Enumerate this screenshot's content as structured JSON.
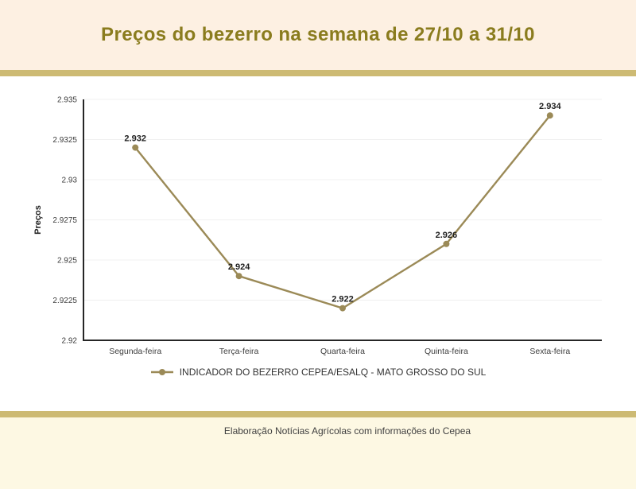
{
  "header": {
    "title": "Preços do bezerro na semana de 27/10 a 31/10"
  },
  "footer": {
    "credit": "Elaboração Notícias Agrícolas com informações do Cepea"
  },
  "colors": {
    "header_bg": "#fdf0e2",
    "footer_bg": "#fdf8e3",
    "divider_bar": "#cdba73",
    "title_text": "#8a7c1e",
    "line": "#9b8a57",
    "axis": "#262626",
    "gridline": "#f0f0f0",
    "tick_text": "#3d3d3d",
    "point_label_text": "#1f1f1f",
    "legend_text": "#333333",
    "footer_text": "#3f3f3f"
  },
  "chart_data": {
    "type": "line",
    "categories": [
      "Segunda-feira",
      "Terça-feira",
      "Quarta-feira",
      "Quinta-feira",
      "Sexta-feira"
    ],
    "series": [
      {
        "name": "INDICADOR DO BEZERRO CEPEA/ESALQ - MATO GROSSO DO SUL",
        "values": [
          2.932,
          2.924,
          2.922,
          2.926,
          2.934
        ]
      }
    ],
    "point_labels": [
      "2.932",
      "2.924",
      "2.922",
      "2.926",
      "2.934"
    ],
    "ylabel": "Preços",
    "ylim": [
      2.92,
      2.935
    ],
    "yticks": [
      2.92,
      2.9225,
      2.925,
      2.9275,
      2.93,
      2.9325,
      2.935
    ],
    "ytick_labels": [
      "2.92",
      "2.9225",
      "2.925",
      "2.9275",
      "2.93",
      "2.9325",
      "2.935"
    ],
    "grid": true,
    "legend_position": "bottom"
  }
}
